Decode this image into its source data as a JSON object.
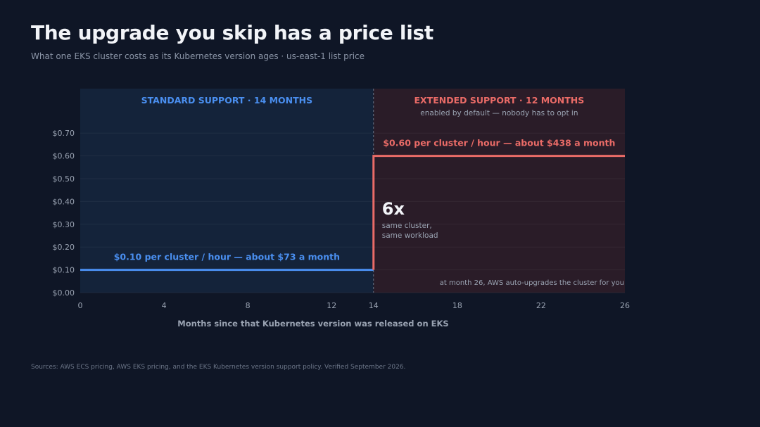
{
  "header": {
    "title": "The upgrade you skip has a price list",
    "subtitle": "What one EKS cluster costs as its Kubernetes version ages · us-east-1 list price"
  },
  "footer": {
    "sources": "Sources: AWS ECS pricing, AWS EKS pricing, and the EKS Kubernetes version support policy. Verified September 2026."
  },
  "colors": {
    "background": "#0f1626",
    "standard": "#4a8ff0",
    "extended": "#ea6b67",
    "standard_region": "#14233a",
    "extended_region": "#2a1c28"
  },
  "chart_data": {
    "type": "line",
    "xlabel": "Months since that Kubernetes version was released on EKS",
    "ylabel": "",
    "xlim": [
      0,
      26
    ],
    "ylim": [
      0,
      0.75
    ],
    "x_ticks": [
      0,
      4,
      8,
      12,
      14,
      18,
      22,
      26
    ],
    "y_ticks": [
      0,
      0.1,
      0.2,
      0.3,
      0.4,
      0.5,
      0.6,
      0.7
    ],
    "y_tick_labels": [
      "$0.00",
      "$0.10",
      "$0.20",
      "$0.30",
      "$0.40",
      "$0.50",
      "$0.60",
      "$0.70"
    ],
    "grid": true,
    "divider_x": 14,
    "regions": [
      {
        "name": "standard",
        "x_range": [
          0,
          14
        ],
        "label": "STANDARD SUPPORT · 14 MONTHS"
      },
      {
        "name": "extended",
        "x_range": [
          14,
          26
        ],
        "label": "EXTENDED SUPPORT · 12 MONTHS",
        "sublabel": "enabled by default — nobody has to opt in"
      }
    ],
    "series": [
      {
        "segment": "standard",
        "x": [
          0,
          14
        ],
        "y": [
          0.1,
          0.1
        ],
        "label": "$0.10 per cluster / hour — about $73 a month"
      },
      {
        "segment": "extended",
        "x": [
          14,
          14,
          26
        ],
        "y": [
          0.1,
          0.6,
          0.6
        ],
        "label": "$0.60 per cluster / hour — about $438 a month"
      }
    ],
    "annotations": {
      "multiplier": "6x",
      "multiplier_note": [
        "same cluster,",
        "same workload"
      ],
      "end_note": "at month 26, AWS auto-upgrades the cluster for you"
    }
  }
}
